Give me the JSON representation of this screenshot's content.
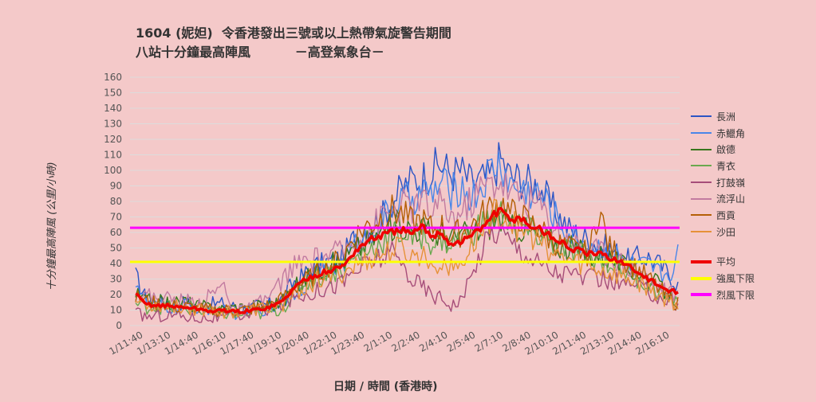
{
  "title_line1": "1604 (妮妲)  令香港發出三號或以上熱帶氣旋警告期間",
  "title_line2": "八站十分鐘最高陣風          －高登氣象台－",
  "ylabel": "十分鐘最高陣風 (公里/小時)",
  "xlabel": "日期 / 時間 (香港時)",
  "chart_data": {
    "type": "line",
    "ylim": [
      0,
      160
    ],
    "yticks": [
      0,
      10,
      20,
      30,
      40,
      50,
      60,
      70,
      80,
      90,
      100,
      110,
      120,
      130,
      140,
      150,
      160
    ],
    "xticks": [
      "1/11:40",
      "1/13:10",
      "1/14:40",
      "1/16:10",
      "1/17:40",
      "1/19:10",
      "1/20:40",
      "1/22:10",
      "1/23:40",
      "2/1:10",
      "2/2:40",
      "2/4:10",
      "2/5:40",
      "2/7:10",
      "2/8:40",
      "2/10:10",
      "2/11:40",
      "2/13:10",
      "2/14:40",
      "2/16:10"
    ],
    "grid": true,
    "legend_position": "right",
    "series": [
      {
        "name": "長洲",
        "color": "#2c55c4",
        "anchors": [
          32,
          18,
          15,
          16,
          14,
          15,
          13,
          12,
          14,
          14,
          12,
          11,
          12,
          13,
          14,
          18,
          28,
          32,
          38,
          40,
          42,
          44,
          55,
          60,
          65,
          70,
          80,
          88,
          94,
          95,
          100,
          104,
          98,
          100,
          92,
          94,
          96,
          108,
          96,
          95,
          92,
          90,
          78,
          70,
          62,
          58,
          55,
          52,
          50,
          46,
          42,
          44,
          44,
          40,
          34,
          26
        ]
      },
      {
        "name": "赤鱲角",
        "color": "#4a86e8",
        "anchors": [
          30,
          15,
          12,
          12,
          11,
          13,
          12,
          11,
          10,
          9,
          8,
          9,
          10,
          11,
          12,
          15,
          22,
          26,
          32,
          36,
          38,
          40,
          50,
          55,
          62,
          68,
          76,
          80,
          82,
          86,
          84,
          92,
          86,
          90,
          82,
          88,
          100,
          104,
          90,
          88,
          86,
          84,
          76,
          66,
          58,
          54,
          52,
          50,
          48,
          44,
          40,
          38,
          38,
          34,
          32,
          46
        ]
      },
      {
        "name": "啟德",
        "color": "#38761d",
        "anchors": [
          20,
          16,
          15,
          15,
          14,
          16,
          13,
          12,
          11,
          10,
          12,
          12,
          13,
          13,
          14,
          16,
          24,
          28,
          34,
          38,
          40,
          42,
          48,
          52,
          56,
          60,
          64,
          66,
          62,
          64,
          58,
          60,
          56,
          58,
          60,
          62,
          66,
          70,
          62,
          64,
          60,
          58,
          56,
          52,
          50,
          48,
          46,
          46,
          44,
          40,
          36,
          34,
          30,
          26,
          20,
          16
        ]
      },
      {
        "name": "青衣",
        "color": "#6aa84f",
        "anchors": [
          14,
          12,
          12,
          12,
          11,
          11,
          10,
          9,
          8,
          8,
          7,
          7,
          7,
          8,
          9,
          12,
          20,
          26,
          30,
          32,
          34,
          36,
          42,
          46,
          50,
          54,
          58,
          60,
          56,
          58,
          54,
          56,
          52,
          56,
          60,
          64,
          70,
          72,
          66,
          64,
          60,
          58,
          54,
          50,
          48,
          46,
          44,
          42,
          40,
          38,
          34,
          30,
          26,
          22,
          18,
          18
        ]
      },
      {
        "name": "打鼓嶺",
        "color": "#a64d79",
        "anchors": [
          8,
          6,
          6,
          7,
          7,
          6,
          5,
          5,
          5,
          5,
          6,
          7,
          8,
          10,
          12,
          14,
          18,
          20,
          22,
          24,
          26,
          28,
          34,
          38,
          42,
          44,
          46,
          40,
          30,
          26,
          20,
          18,
          14,
          16,
          30,
          48,
          60,
          62,
          54,
          50,
          44,
          40,
          36,
          34,
          34,
          32,
          30,
          30,
          28,
          28,
          26,
          24,
          22,
          18,
          16,
          14
        ]
      },
      {
        "name": "流浮山",
        "color": "#c27ba0",
        "anchors": [
          22,
          20,
          18,
          18,
          16,
          16,
          15,
          16,
          22,
          26,
          10,
          9,
          12,
          16,
          22,
          30,
          38,
          40,
          42,
          44,
          46,
          48,
          52,
          58,
          64,
          70,
          74,
          78,
          76,
          80,
          74,
          78,
          70,
          72,
          80,
          88,
          92,
          94,
          86,
          84,
          80,
          78,
          68,
          60,
          54,
          52,
          50,
          48,
          46,
          42,
          38,
          36,
          30,
          26,
          22,
          20
        ]
      },
      {
        "name": "西貢",
        "color": "#b45f06",
        "anchors": [
          18,
          16,
          14,
          14,
          12,
          12,
          11,
          10,
          10,
          10,
          10,
          10,
          11,
          12,
          14,
          18,
          24,
          28,
          32,
          36,
          40,
          44,
          56,
          62,
          66,
          70,
          74,
          72,
          66,
          68,
          62,
          64,
          58,
          60,
          64,
          70,
          76,
          80,
          72,
          70,
          66,
          62,
          56,
          52,
          50,
          48,
          46,
          76,
          50,
          46,
          40,
          36,
          30,
          24,
          18,
          14
        ]
      },
      {
        "name": "沙田",
        "color": "#e69138",
        "anchors": [
          16,
          14,
          13,
          13,
          12,
          12,
          11,
          10,
          10,
          9,
          9,
          9,
          10,
          11,
          12,
          14,
          20,
          24,
          28,
          30,
          32,
          34,
          38,
          40,
          44,
          46,
          48,
          50,
          44,
          46,
          40,
          42,
          36,
          40,
          50,
          60,
          70,
          74,
          66,
          62,
          58,
          54,
          48,
          44,
          42,
          40,
          38,
          36,
          34,
          32,
          30,
          28,
          24,
          20,
          16,
          14
        ]
      },
      {
        "name": "平均",
        "color": "#ee0000",
        "anchors": [
          20,
          14,
          13,
          13,
          12,
          12,
          11,
          10,
          9,
          10,
          9,
          9,
          10,
          11,
          13,
          16,
          24,
          29,
          32,
          34,
          36,
          38,
          46,
          52,
          56,
          58,
          60,
          62,
          58,
          64,
          58,
          60,
          52,
          54,
          58,
          62,
          70,
          74,
          68,
          70,
          64,
          62,
          58,
          54,
          50,
          48,
          46,
          46,
          44,
          42,
          38,
          34,
          30,
          26,
          22,
          22
        ]
      },
      {
        "name": "強風下限",
        "color": "#ffff00",
        "values": [
          41,
          41
        ]
      },
      {
        "name": "烈風下限",
        "color": "#ff00ff",
        "values": [
          63,
          63
        ]
      }
    ]
  }
}
